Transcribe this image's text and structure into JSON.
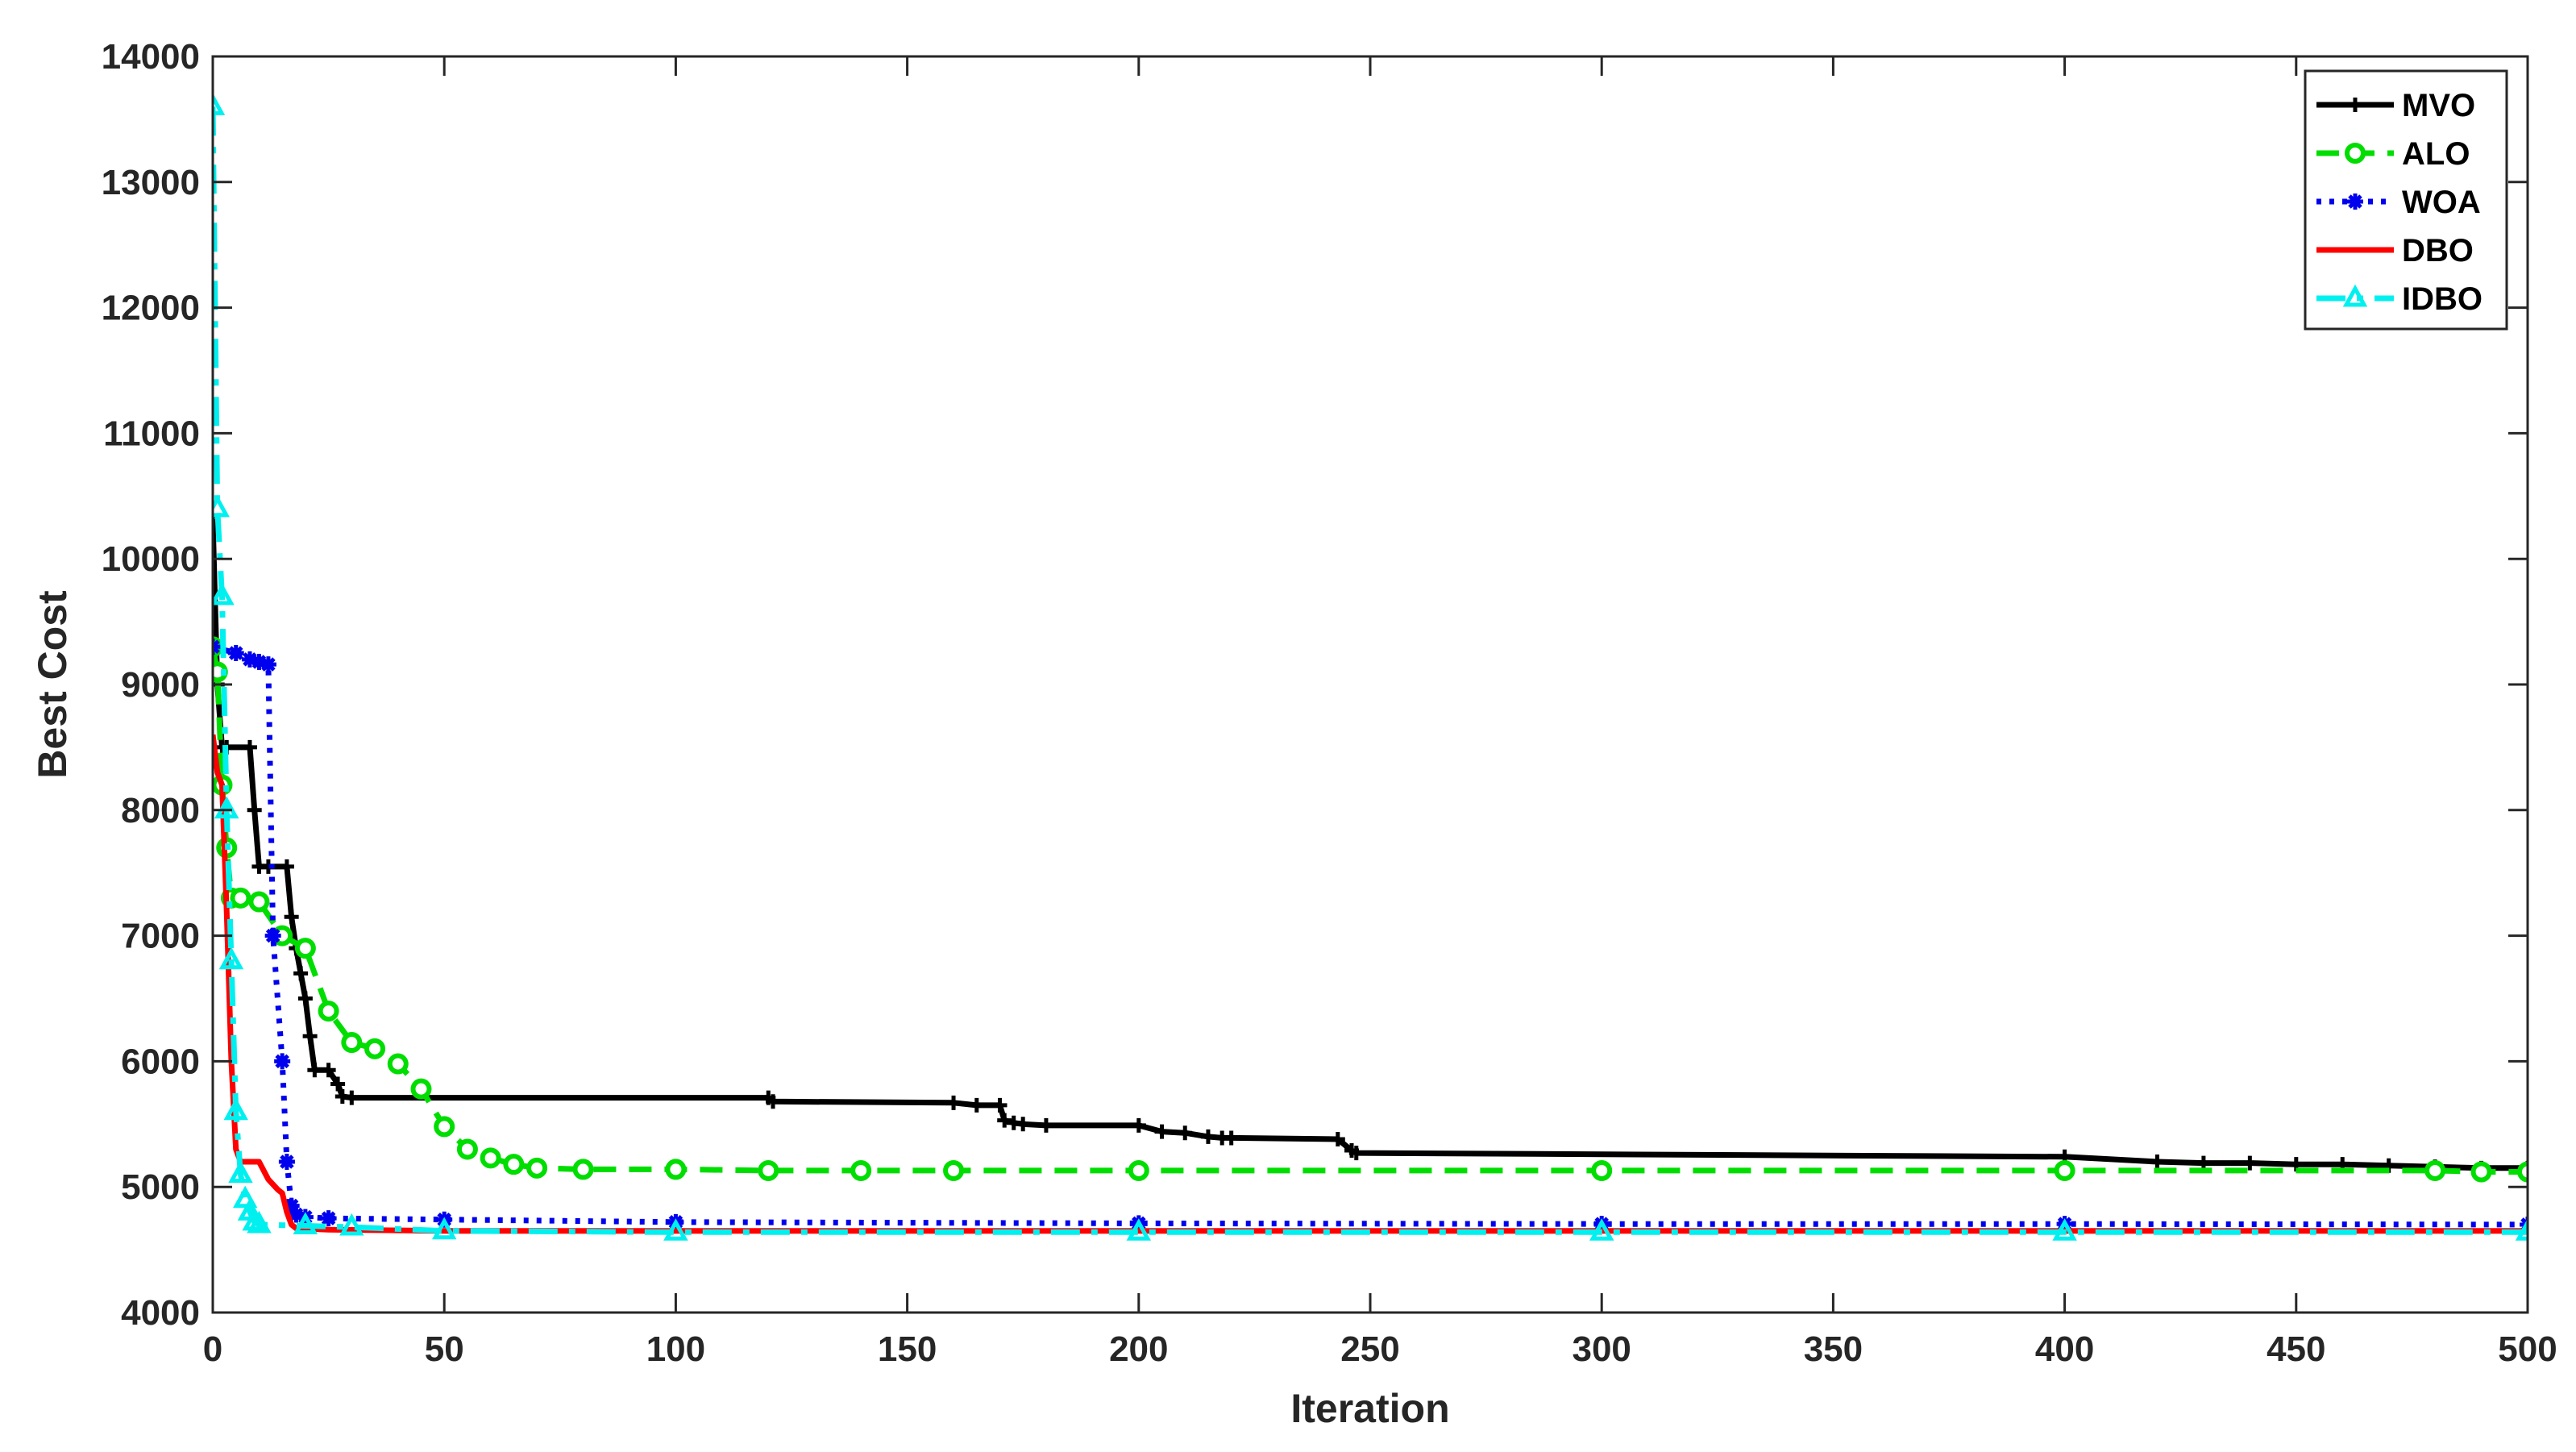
{
  "chart_data": {
    "type": "line",
    "xlabel": "Iteration",
    "ylabel": "Best Cost",
    "xlim": [
      0,
      500
    ],
    "ylim": [
      4000,
      14000
    ],
    "xticks": [
      0,
      50,
      100,
      150,
      200,
      250,
      300,
      350,
      400,
      450,
      500
    ],
    "yticks": [
      4000,
      5000,
      6000,
      7000,
      8000,
      9000,
      10000,
      11000,
      12000,
      13000,
      14000
    ],
    "grid": false,
    "legend_position": "top-right",
    "series": [
      {
        "name": "MVO",
        "color": "#000000",
        "dash": "solid",
        "marker": "plus",
        "x": [
          0,
          1,
          2,
          3,
          8,
          9,
          10,
          12,
          16,
          17,
          18,
          19,
          20,
          21,
          22,
          25,
          27,
          28,
          30,
          120,
          121,
          160,
          165,
          170,
          171,
          173,
          175,
          180,
          200,
          205,
          210,
          215,
          218,
          220,
          243,
          246,
          247,
          400,
          420,
          430,
          440,
          450,
          460,
          470,
          480,
          490,
          500
        ],
        "y": [
          10300,
          9000,
          8500,
          8500,
          8500,
          8000,
          7550,
          7550,
          7550,
          7150,
          6900,
          6700,
          6500,
          6200,
          5930,
          5930,
          5820,
          5720,
          5710,
          5710,
          5680,
          5670,
          5650,
          5650,
          5530,
          5510,
          5500,
          5490,
          5490,
          5440,
          5430,
          5400,
          5390,
          5390,
          5380,
          5290,
          5270,
          5240,
          5200,
          5190,
          5190,
          5180,
          5180,
          5170,
          5160,
          5150,
          5150
        ]
      },
      {
        "name": "ALO",
        "color": "#00dd00",
        "dash": "dashed",
        "marker": "circle",
        "x": [
          0,
          1,
          2,
          3,
          4,
          6,
          10,
          15,
          20,
          25,
          30,
          35,
          40,
          45,
          50,
          55,
          60,
          65,
          70,
          80,
          100,
          120,
          140,
          160,
          200,
          300,
          400,
          480,
          490,
          500
        ],
        "y": [
          9300,
          9100,
          8200,
          7700,
          7300,
          7300,
          7270,
          7000,
          6900,
          6400,
          6150,
          6100,
          5980,
          5780,
          5480,
          5300,
          5230,
          5180,
          5150,
          5140,
          5140,
          5130,
          5130,
          5130,
          5130,
          5130,
          5130,
          5130,
          5120,
          5120
        ]
      },
      {
        "name": "WOA",
        "color": "#0000ee",
        "dash": "dotted",
        "marker": "star",
        "x": [
          0,
          5,
          8,
          10,
          12,
          13,
          15,
          16,
          17,
          18,
          20,
          25,
          50,
          100,
          200,
          300,
          400,
          500
        ],
        "y": [
          9300,
          9250,
          9200,
          9180,
          9160,
          7000,
          6000,
          5200,
          4850,
          4780,
          4760,
          4750,
          4740,
          4720,
          4710,
          4705,
          4705,
          4700
        ]
      },
      {
        "name": "DBO",
        "color": "#ff0000",
        "dash": "solid",
        "marker": "none",
        "x": [
          0,
          1,
          2,
          3,
          4,
          5,
          6,
          7,
          10,
          12,
          14,
          15,
          16,
          17,
          18,
          25,
          50,
          500
        ],
        "y": [
          8600,
          8300,
          8200,
          7200,
          6000,
          5300,
          5200,
          5200,
          5200,
          5060,
          4980,
          4950,
          4800,
          4700,
          4670,
          4660,
          4650,
          4650
        ]
      },
      {
        "name": "IDBO",
        "color": "#00f0f0",
        "dash": "dashdot",
        "marker": "triangle",
        "x": [
          0,
          1,
          2,
          3,
          4,
          5,
          6,
          7,
          8,
          9,
          10,
          20,
          30,
          50,
          100,
          200,
          300,
          400,
          500
        ],
        "y": [
          13600,
          10400,
          9700,
          8000,
          6800,
          5600,
          5100,
          4900,
          4800,
          4720,
          4700,
          4690,
          4680,
          4650,
          4640,
          4640,
          4640,
          4640,
          4640
        ]
      }
    ]
  }
}
